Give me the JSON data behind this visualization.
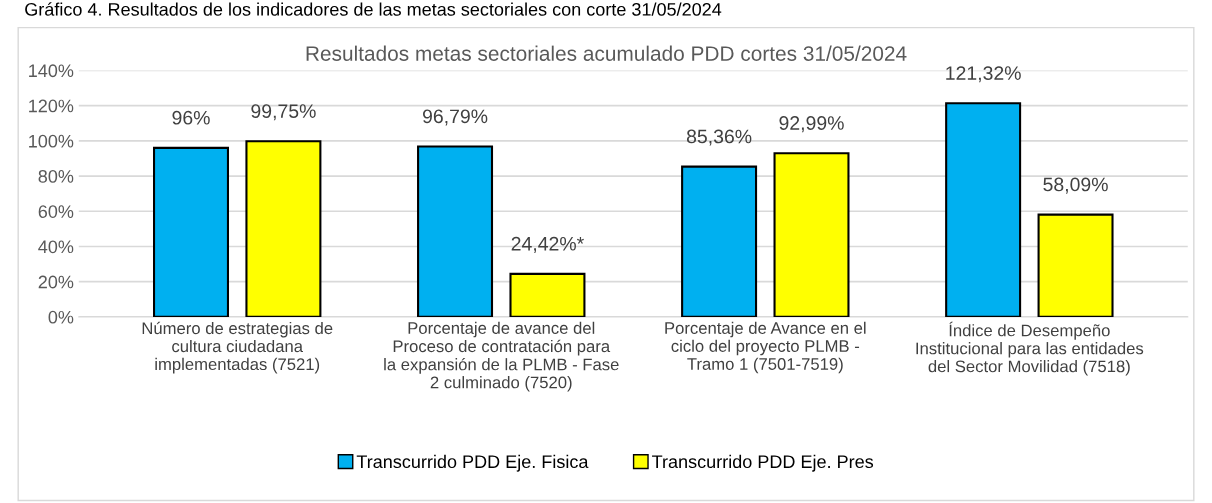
{
  "chart_data": {
    "type": "bar",
    "title": "Resultados metas sectoriales acumulado PDD cortes 31/05/2024",
    "annotations": [
      "Gráfico 4. Resultados de los indicadores de las metas sectoriales con corte 31/05/2024"
    ],
    "categories": [
      "Número de estrategias de\ncultura ciudadana\nimplementadas (7521)",
      "Porcentaje de avance del\nProceso de contratación para\nla expansión de la PLMB - Fase\n2 culminado (7520)",
      "Porcentaje de Avance en el\nciclo del proyecto PLMB -\nTramo 1 (7501-7519)",
      "Índice de Desempeño\nInstitucional para las entidades\ndel Sector Movilidad (7518)"
    ],
    "series": [
      {
        "name": "Transcurrido PDD Eje. Fisica",
        "color": "#00b0f0",
        "values": [
          96,
          96.79,
          85.36,
          121.32
        ],
        "value_labels": [
          "96%",
          "96,79%",
          "85,36%",
          "121,32%"
        ]
      },
      {
        "name": "Transcurrido PDD Eje. Pres",
        "color": "#ffff00",
        "values": [
          99.75,
          24.42,
          92.99,
          58.09
        ],
        "value_labels": [
          "99,75%",
          "24,42%*",
          "92,99%",
          "58,09%"
        ]
      }
    ],
    "ylim": [
      0,
      140
    ],
    "yticks": [
      {
        "value": 0,
        "label": "0%"
      },
      {
        "value": 20,
        "label": "20%"
      },
      {
        "value": 40,
        "label": "40%"
      },
      {
        "value": 60,
        "label": "60%"
      },
      {
        "value": 80,
        "label": "80%"
      },
      {
        "value": 100,
        "label": "100%"
      },
      {
        "value": 120,
        "label": "120%"
      },
      {
        "value": 140,
        "label": "140%"
      }
    ],
    "grid": "y",
    "legend": "bottom"
  }
}
